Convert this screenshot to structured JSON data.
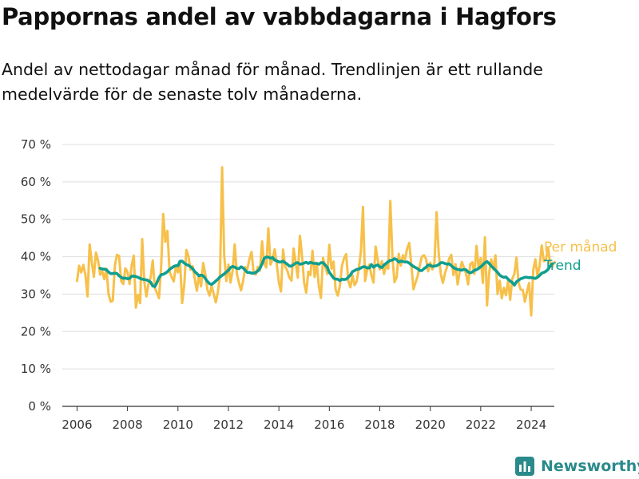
{
  "title": "Pappornas andel av vabbdagarna i Hagfors",
  "subtitle": "Andel av nettodagar månad för månad. Trendlinjen är ett rullande medelvärde för de senaste tolv månaderna.",
  "brand": {
    "name": "Newsworthy"
  },
  "chart_data": {
    "type": "line",
    "title": "Pappornas andel av vabbdagarna i Hagfors",
    "xlabel": "",
    "ylabel": "",
    "x_ticks": [
      "2006",
      "2008",
      "2010",
      "2012",
      "2014",
      "2016",
      "2018",
      "2020",
      "2022",
      "2024"
    ],
    "y_ticks": [
      "0 %",
      "10 %",
      "20 %",
      "30 %",
      "40 %",
      "50 %",
      "60 %",
      "70 %"
    ],
    "ylim": [
      0,
      70
    ],
    "xlim": [
      "2005-06",
      "2024-12"
    ],
    "grid": true,
    "legend_position": "right (labels at line ends)",
    "series": [
      {
        "name": "Per månad",
        "color": "#f7c04a",
        "start": "2006-01",
        "frequency": "monthly",
        "values": [
          33.5,
          37.6,
          35.8,
          37.8,
          35.1,
          29.4,
          43.3,
          38.7,
          34.6,
          41.1,
          39.0,
          35.2,
          36.1,
          34.0,
          36.8,
          30.0,
          28.0,
          28.2,
          37.6,
          40.5,
          40.2,
          33.5,
          32.7,
          36.9,
          35.9,
          32.7,
          37.8,
          40.3,
          26.4,
          29.8,
          27.6,
          44.7,
          33.3,
          29.4,
          32.8,
          34.4,
          39.0,
          31.6,
          30.4,
          28.9,
          37.3,
          51.4,
          44.0,
          46.9,
          36.0,
          34.5,
          33.4,
          37.5,
          35.8,
          38.7,
          27.6,
          32.5,
          41.8,
          40.2,
          36.5,
          37.5,
          34.0,
          30.9,
          35.2,
          32.1,
          38.3,
          35.4,
          31.2,
          29.6,
          32.2,
          30.1,
          27.8,
          30.6,
          35.0,
          63.9,
          40.4,
          33.5,
          37.9,
          33.1,
          36.3,
          43.3,
          35.5,
          33.1,
          31.0,
          33.5,
          37.2,
          36.7,
          39.4,
          41.3,
          35.6,
          35.2,
          37.3,
          36.3,
          44.1,
          38.3,
          37.1,
          47.6,
          37.9,
          39.3,
          42.0,
          38.0,
          33.2,
          30.7,
          41.9,
          37.4,
          36.3,
          34.4,
          33.6,
          42.2,
          38.4,
          34.4,
          45.6,
          40.3,
          33.1,
          30.4,
          36.0,
          35.1,
          41.6,
          34.6,
          38.4,
          32.2,
          29.0,
          39.7,
          37.5,
          35.4,
          43.2,
          36.8,
          38.7,
          31.2,
          29.6,
          32.2,
          37.6,
          39.6,
          40.7,
          33.5,
          31.8,
          35.0,
          32.4,
          33.4,
          36.8,
          41.4,
          53.3,
          33.5,
          36.5,
          37.9,
          35.0,
          33.1,
          42.7,
          39.2,
          36.6,
          38.8,
          35.4,
          37.8,
          36.8,
          54.9,
          39.8,
          33.2,
          34.5,
          40.8,
          37.6,
          40.4,
          39.3,
          42.2,
          43.7,
          37.8,
          31.3,
          33.1,
          34.8,
          37.6,
          40.0,
          40.4,
          39.4,
          36.1,
          38.4,
          36.6,
          38.5,
          51.9,
          41.0,
          35.4,
          33.0,
          35.6,
          37.3,
          39.5,
          40.5,
          35.1,
          38.0,
          32.6,
          35.9,
          38.6,
          37.1,
          35.5,
          32.6,
          38.0,
          38.5,
          35.4,
          42.9,
          36.9,
          39.6,
          33.0,
          45.2,
          27.0,
          35.7,
          39.3,
          36.6,
          40.4,
          30.0,
          33.6,
          28.9,
          31.7,
          29.7,
          33.6,
          28.5,
          34.1,
          35.4,
          39.8,
          33.0,
          31.2,
          31.1,
          28.0,
          30.7,
          33.0,
          24.3,
          36.6,
          39.3,
          34.7,
          37.6,
          43.0,
          38.8,
          39.1,
          42.5,
          38.2,
          37.3,
          38.6
        ]
      },
      {
        "name": "Trend",
        "color": "#109e8f",
        "start": "2006-12",
        "frequency": "monthly",
        "values": [
          36.9,
          36.7,
          36.7,
          36.5,
          35.9,
          35.5,
          35.5,
          35.6,
          35.5,
          34.9,
          34.5,
          34.2,
          34.3,
          34.1,
          34.2,
          34.8,
          34.8,
          34.7,
          34.5,
          34.2,
          34.0,
          33.9,
          33.8,
          33.6,
          33.2,
          32.2,
          32.0,
          33.1,
          34.4,
          35.2,
          35.3,
          35.6,
          36.0,
          36.6,
          37.0,
          37.4,
          37.6,
          37.6,
          38.8,
          38.8,
          38.3,
          37.9,
          37.7,
          37.3,
          36.8,
          36.0,
          35.5,
          34.9,
          35.1,
          34.9,
          34.2,
          33.4,
          32.8,
          32.6,
          33.0,
          33.5,
          34.0,
          34.6,
          35.0,
          35.4,
          35.9,
          36.4,
          37.1,
          37.4,
          37.2,
          36.9,
          36.8,
          37.3,
          37.0,
          36.4,
          35.8,
          35.8,
          35.6,
          35.6,
          35.8,
          36.2,
          36.9,
          38.1,
          39.6,
          39.9,
          39.9,
          39.6,
          39.8,
          39.1,
          38.9,
          38.6,
          38.6,
          38.8,
          38.4,
          38.0,
          37.5,
          37.5,
          37.9,
          38.3,
          38.4,
          38.0,
          38.1,
          38.3,
          38.5,
          38.2,
          38.5,
          38.3,
          38.2,
          38.2,
          38.0,
          38.4,
          38.4,
          37.8,
          37.2,
          35.8,
          35.1,
          34.3,
          34.0,
          34.0,
          33.6,
          34.0,
          33.9,
          34.0,
          34.5,
          35.1,
          36.0,
          36.3,
          36.6,
          36.7,
          37.0,
          37.3,
          37.3,
          37.0,
          37.0,
          37.9,
          37.2,
          37.6,
          37.8,
          37.3,
          37.1,
          37.8,
          38.2,
          38.7,
          39.0,
          39.1,
          39.5,
          39.2,
          38.6,
          38.8,
          38.7,
          38.6,
          38.6,
          38.3,
          37.8,
          37.4,
          37.1,
          36.8,
          36.3,
          36.3,
          36.8,
          37.2,
          37.8,
          37.7,
          37.4,
          37.5,
          37.6,
          37.9,
          38.4,
          38.4,
          38.2,
          38.0,
          38.1,
          37.6,
          37.1,
          36.8,
          36.6,
          36.5,
          36.4,
          36.6,
          36.5,
          35.9,
          35.7,
          35.9,
          36.4,
          36.5,
          36.9,
          37.3,
          37.8,
          38.4,
          38.7,
          38.2,
          37.5,
          37.0,
          36.4,
          35.8,
          35.1,
          34.7,
          34.5,
          34.6,
          34.0,
          33.5,
          33.1,
          32.4,
          33.3,
          33.7,
          34.1,
          34.3,
          34.5,
          34.5,
          34.4,
          34.4,
          34.3,
          34.2,
          34.5,
          35.0,
          35.6,
          35.8,
          36.1,
          36.6,
          37.5,
          38.1
        ]
      }
    ]
  }
}
